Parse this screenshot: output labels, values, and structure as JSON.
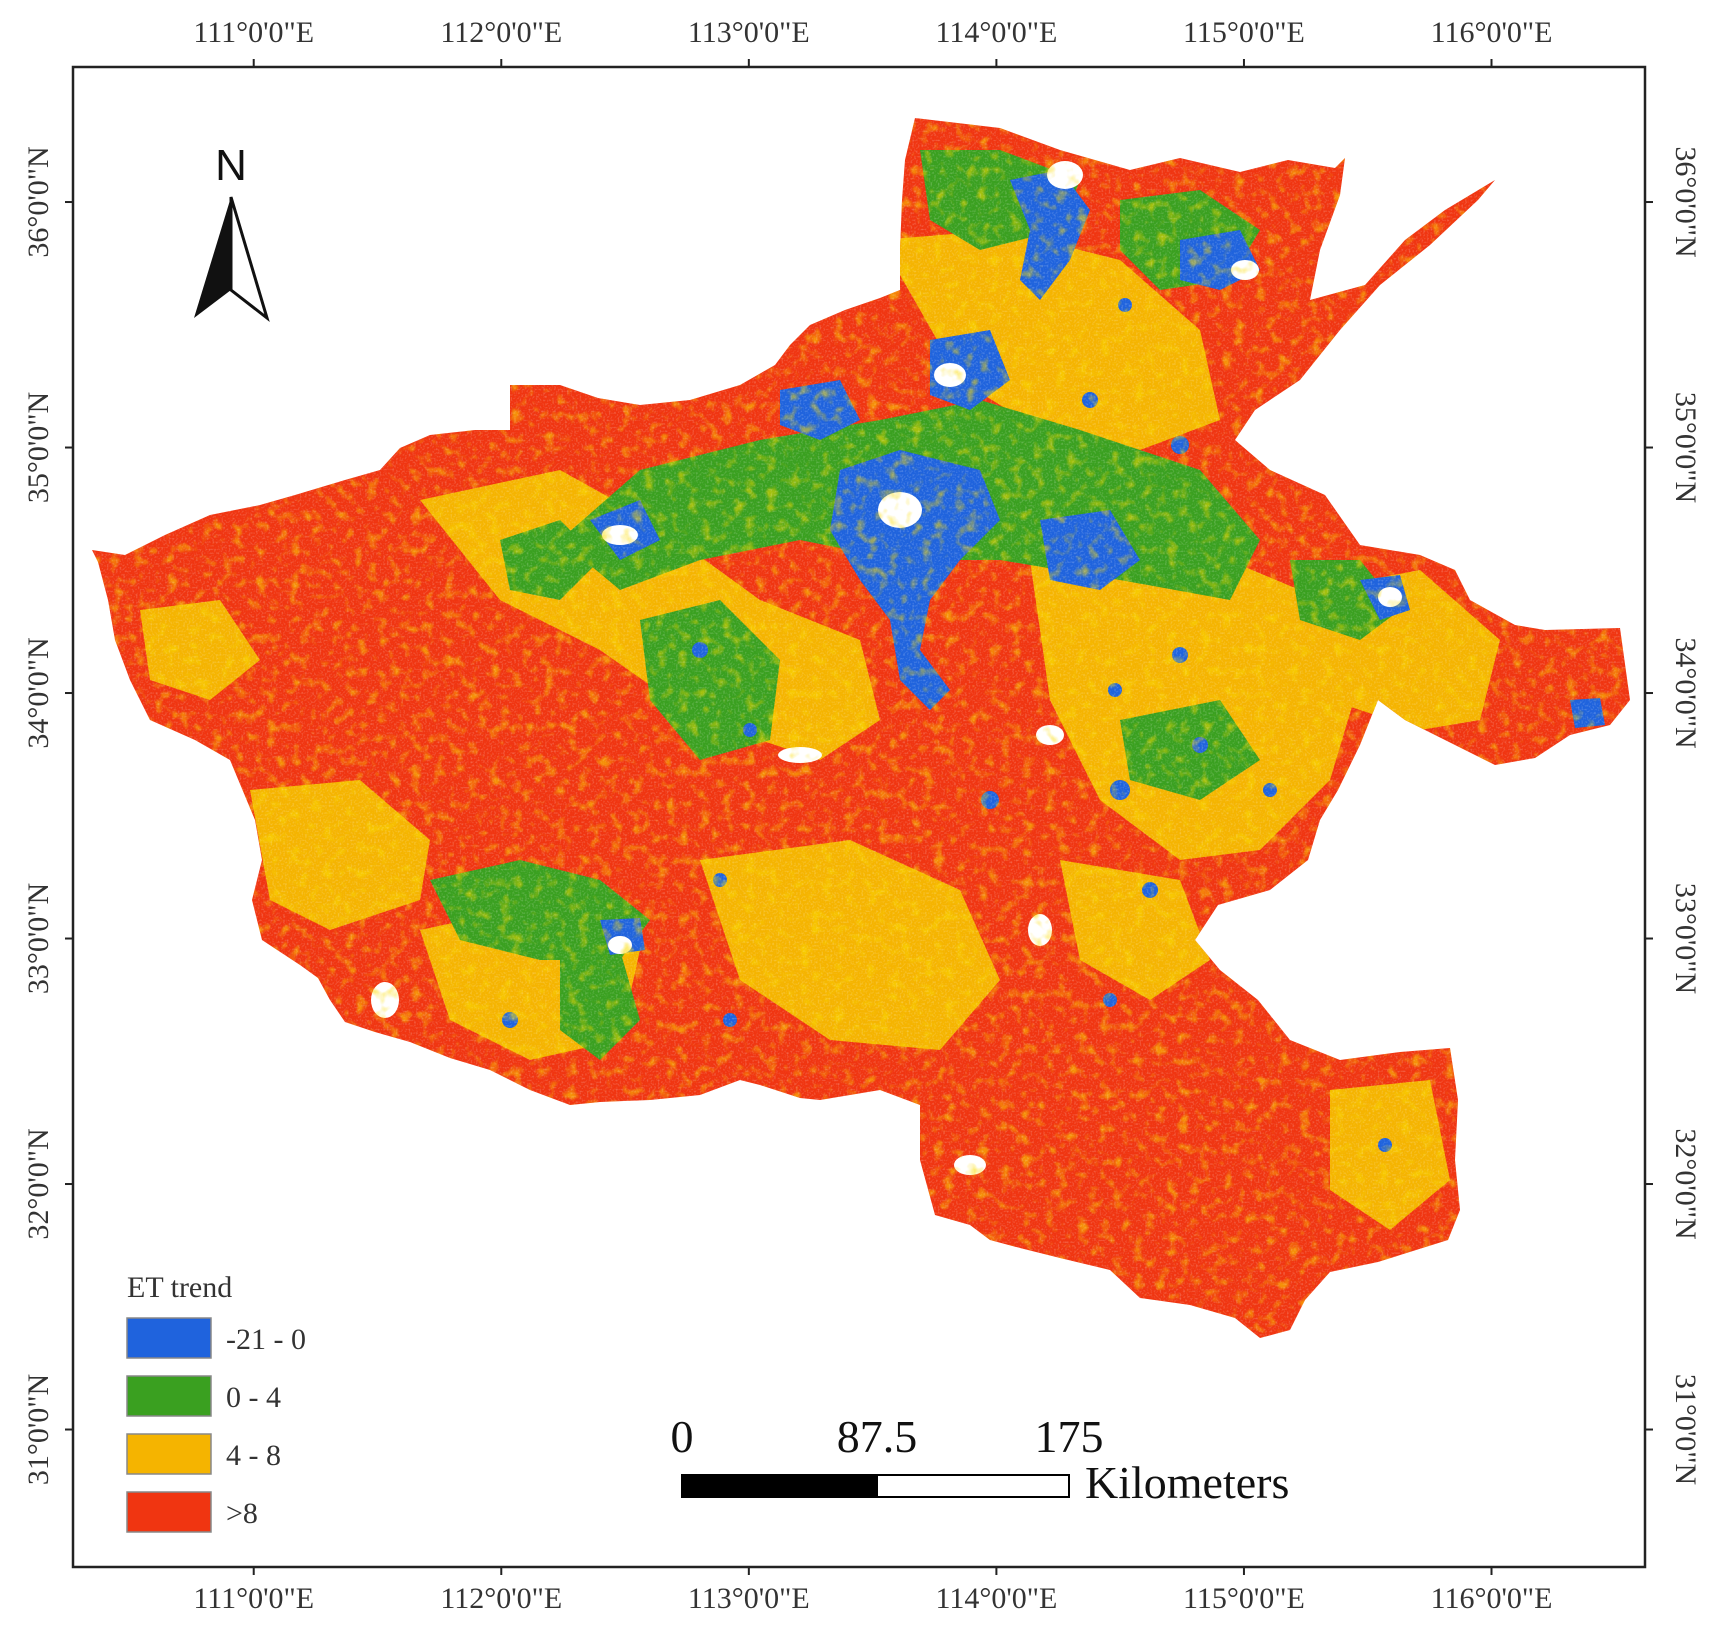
{
  "map": {
    "lon_ticks": [
      {
        "value": 111,
        "label": "111°0'0\"E"
      },
      {
        "value": 112,
        "label": "112°0'0\"E"
      },
      {
        "value": 113,
        "label": "113°0'0\"E"
      },
      {
        "value": 114,
        "label": "114°0'0\"E"
      },
      {
        "value": 115,
        "label": "115°0'0\"E"
      },
      {
        "value": 116,
        "label": "116°0'0\"E"
      }
    ],
    "lat_ticks": [
      {
        "value": 36,
        "label": "36°0'0\"N"
      },
      {
        "value": 35,
        "label": "35°0'0\"N"
      },
      {
        "value": 34,
        "label": "34°0'0\"N"
      },
      {
        "value": 33,
        "label": "33°0'0\"N"
      },
      {
        "value": 32,
        "label": "32°0'0\"N"
      },
      {
        "value": 31,
        "label": "31°0'0\"N"
      }
    ],
    "lon_range": [
      110.27,
      116.62
    ],
    "lat_range": [
      30.44,
      36.55
    ],
    "north_arrow": {
      "label": "N",
      "icon": "north-arrow-icon"
    },
    "legend": {
      "title": "ET trend",
      "placement": "bottom-left",
      "classes": [
        {
          "label": "-21 - 0",
          "color": "#1f63dd"
        },
        {
          "label": "0 - 4",
          "color": "#3aa020"
        },
        {
          "label": "4 - 8",
          "color": "#f5b400"
        },
        {
          "label": ">8",
          "color": "#f03511"
        }
      ]
    },
    "scale_bar": {
      "labels": [
        "0",
        "87.5",
        "175"
      ],
      "unit": "Kilometers"
    },
    "region_colors": {
      "decrease": "#1f63dd",
      "low": "#3aa020",
      "mid": "#f5b400",
      "high": "#f03511",
      "nodata": "#ffffff"
    }
  }
}
